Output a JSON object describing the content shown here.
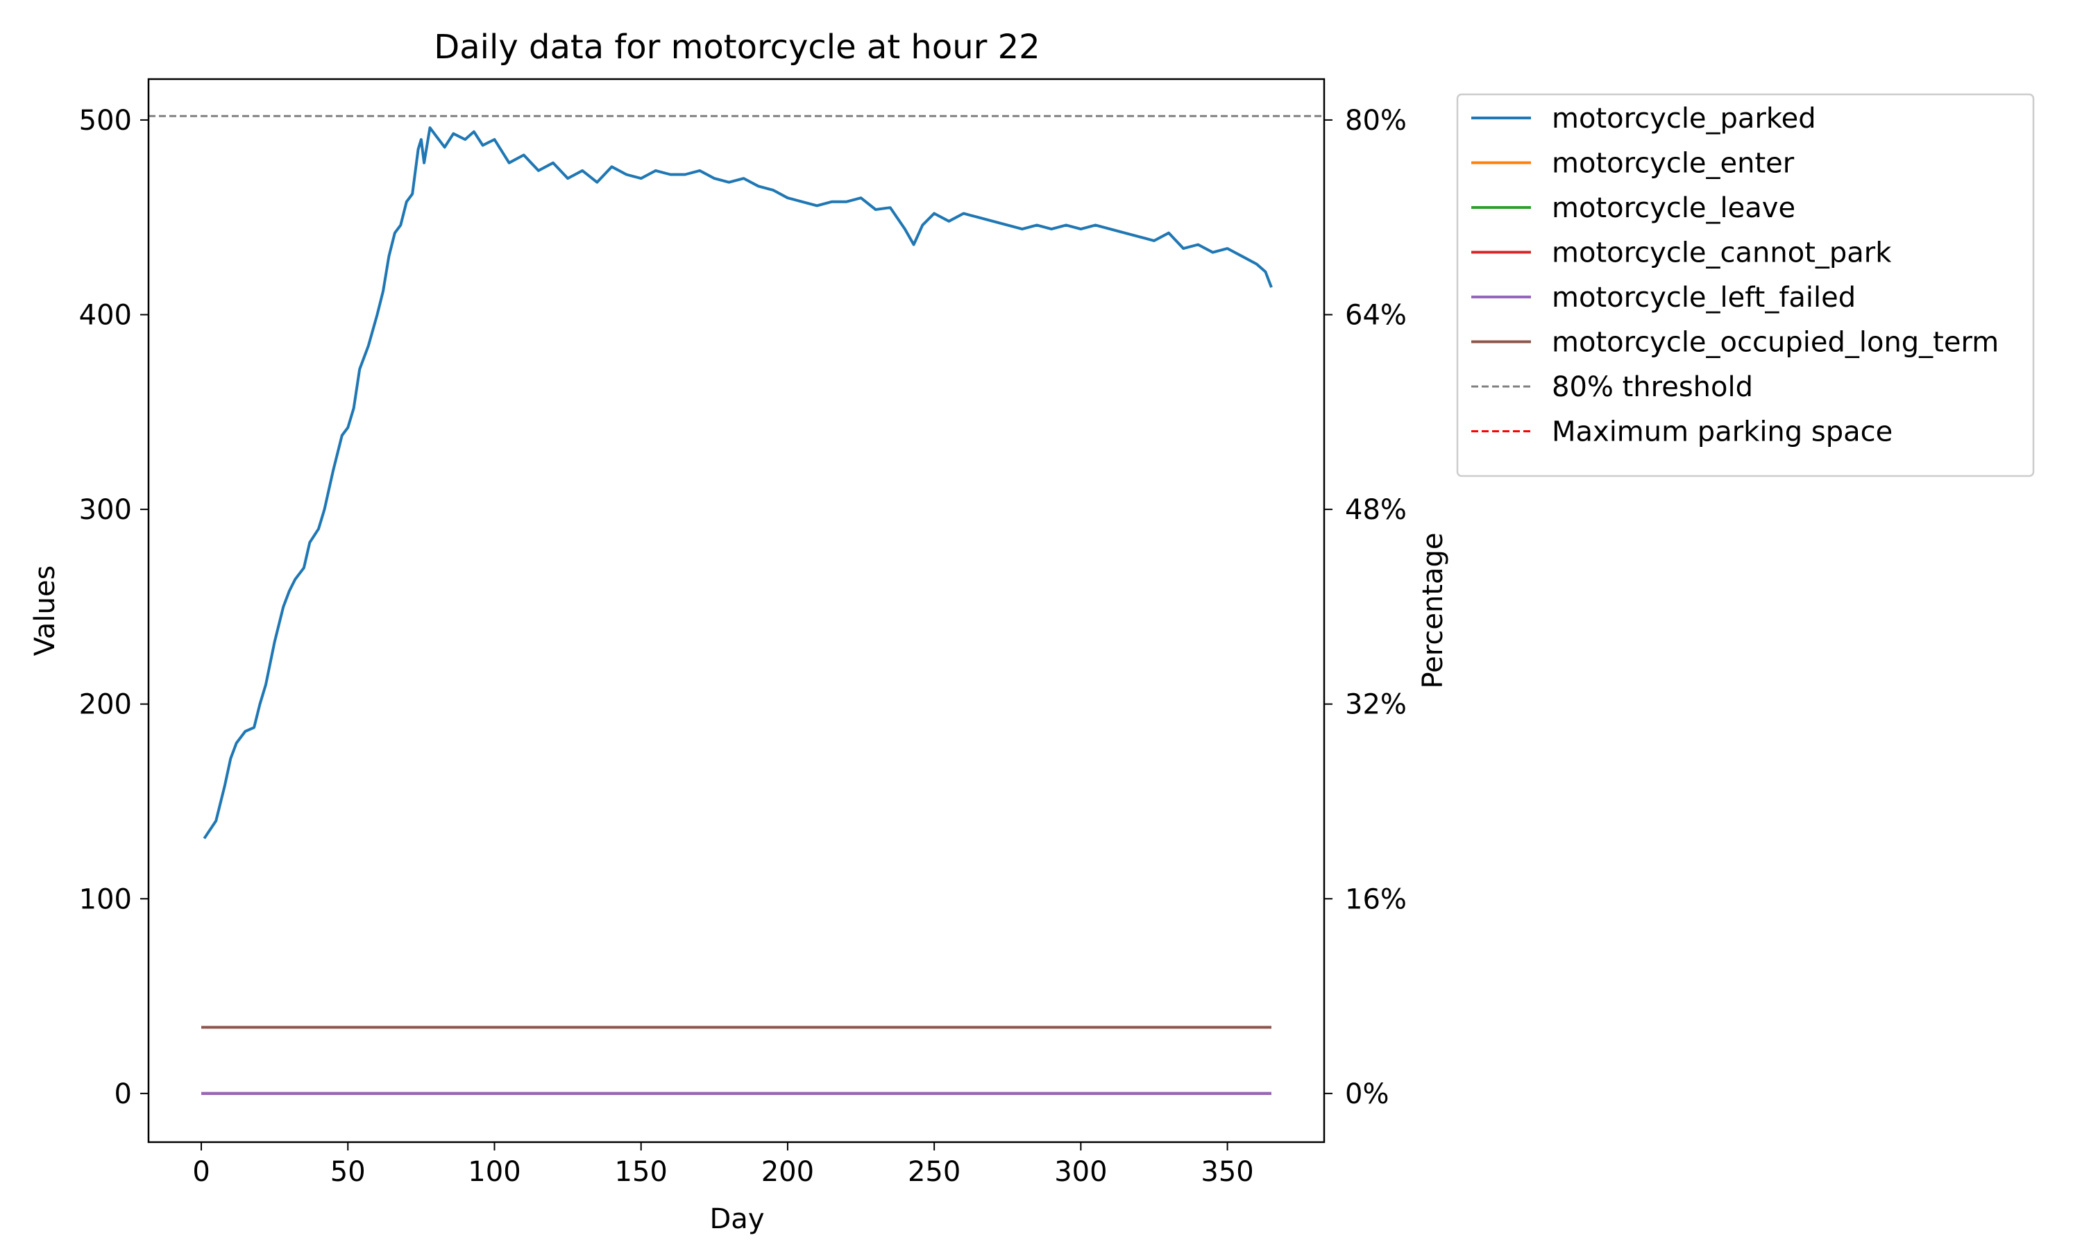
{
  "chart_data": {
    "type": "line",
    "title": "Daily data for motorcycle at hour 22",
    "xlabel": "Day",
    "ylabel": "Values",
    "y2label": "Percentage",
    "xlim": [
      -18,
      383
    ],
    "ylim": [
      -25,
      521
    ],
    "x_ticks": [
      0,
      50,
      100,
      150,
      200,
      250,
      300,
      350
    ],
    "y_ticks": [
      0,
      100,
      200,
      300,
      400,
      500
    ],
    "y2_ticks": [
      {
        "value": 0,
        "label": "0%"
      },
      {
        "value": 100,
        "label": "16%"
      },
      {
        "value": 200,
        "label": "32%"
      },
      {
        "value": 300,
        "label": "48%"
      },
      {
        "value": 400,
        "label": "64%"
      },
      {
        "value": 500,
        "label": "80%"
      }
    ],
    "legend_placement": "outside-upper-right",
    "grid": false,
    "series": [
      {
        "name": "motorcycle_parked",
        "color": "#1f77b4",
        "style": "solid",
        "points": [
          [
            1,
            131
          ],
          [
            5,
            140
          ],
          [
            8,
            158
          ],
          [
            10,
            172
          ],
          [
            12,
            180
          ],
          [
            15,
            186
          ],
          [
            18,
            188
          ],
          [
            20,
            200
          ],
          [
            22,
            210
          ],
          [
            25,
            232
          ],
          [
            28,
            250
          ],
          [
            30,
            258
          ],
          [
            32,
            264
          ],
          [
            35,
            270
          ],
          [
            37,
            283
          ],
          [
            40,
            290
          ],
          [
            42,
            300
          ],
          [
            45,
            320
          ],
          [
            48,
            338
          ],
          [
            50,
            342
          ],
          [
            52,
            352
          ],
          [
            54,
            372
          ],
          [
            57,
            384
          ],
          [
            60,
            400
          ],
          [
            62,
            412
          ],
          [
            64,
            430
          ],
          [
            66,
            442
          ],
          [
            68,
            446
          ],
          [
            70,
            458
          ],
          [
            72,
            462
          ],
          [
            74,
            485
          ],
          [
            75,
            490
          ],
          [
            76,
            478
          ],
          [
            78,
            496
          ],
          [
            80,
            492
          ],
          [
            83,
            486
          ],
          [
            86,
            493
          ],
          [
            90,
            490
          ],
          [
            93,
            494
          ],
          [
            96,
            487
          ],
          [
            100,
            490
          ],
          [
            105,
            478
          ],
          [
            110,
            482
          ],
          [
            115,
            474
          ],
          [
            120,
            478
          ],
          [
            125,
            470
          ],
          [
            130,
            474
          ],
          [
            135,
            468
          ],
          [
            140,
            476
          ],
          [
            145,
            472
          ],
          [
            150,
            470
          ],
          [
            155,
            474
          ],
          [
            160,
            472
          ],
          [
            165,
            472
          ],
          [
            170,
            474
          ],
          [
            175,
            470
          ],
          [
            180,
            468
          ],
          [
            185,
            470
          ],
          [
            190,
            466
          ],
          [
            195,
            464
          ],
          [
            200,
            460
          ],
          [
            205,
            458
          ],
          [
            210,
            456
          ],
          [
            215,
            458
          ],
          [
            220,
            458
          ],
          [
            225,
            460
          ],
          [
            230,
            454
          ],
          [
            235,
            455
          ],
          [
            240,
            444
          ],
          [
            243,
            436
          ],
          [
            246,
            446
          ],
          [
            250,
            452
          ],
          [
            255,
            448
          ],
          [
            260,
            452
          ],
          [
            265,
            450
          ],
          [
            270,
            448
          ],
          [
            275,
            446
          ],
          [
            280,
            444
          ],
          [
            285,
            446
          ],
          [
            290,
            444
          ],
          [
            295,
            446
          ],
          [
            300,
            444
          ],
          [
            305,
            446
          ],
          [
            310,
            444
          ],
          [
            315,
            442
          ],
          [
            320,
            440
          ],
          [
            325,
            438
          ],
          [
            330,
            442
          ],
          [
            335,
            434
          ],
          [
            340,
            436
          ],
          [
            345,
            432
          ],
          [
            350,
            434
          ],
          [
            355,
            430
          ],
          [
            360,
            426
          ],
          [
            363,
            422
          ],
          [
            365,
            414
          ]
        ]
      },
      {
        "name": "motorcycle_enter",
        "color": "#ff7f0e",
        "style": "solid",
        "points": [
          [
            0,
            0
          ],
          [
            365,
            0
          ]
        ]
      },
      {
        "name": "motorcycle_leave",
        "color": "#2ca02c",
        "style": "solid",
        "points": [
          [
            0,
            0
          ],
          [
            365,
            0
          ]
        ]
      },
      {
        "name": "motorcycle_cannot_park",
        "color": "#d62728",
        "style": "solid",
        "points": [
          [
            0,
            0
          ],
          [
            365,
            0
          ]
        ]
      },
      {
        "name": "motorcycle_left_failed",
        "color": "#9467bd",
        "style": "solid",
        "points": [
          [
            0,
            0
          ],
          [
            365,
            0
          ]
        ]
      },
      {
        "name": "motorcycle_occupied_long_term",
        "color": "#8c564b",
        "style": "solid",
        "points": [
          [
            0,
            34
          ],
          [
            365,
            34
          ]
        ]
      }
    ],
    "reference_lines": [
      {
        "name": "80% threshold",
        "color": "#808080",
        "style": "dashed",
        "y": 502
      },
      {
        "name": "Maximum parking space",
        "color": "#ff0000",
        "style": "dashed",
        "y": null
      }
    ]
  }
}
